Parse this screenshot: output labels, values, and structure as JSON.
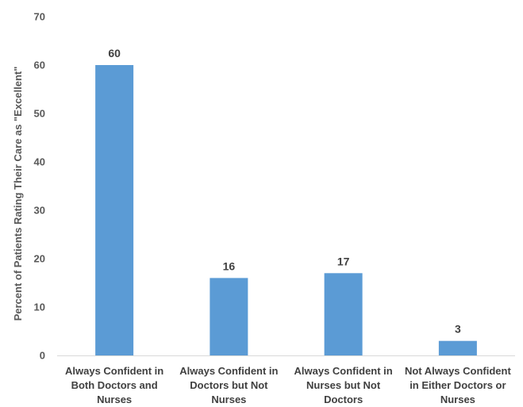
{
  "chart_data": {
    "type": "bar",
    "categories": [
      [
        "Always Confident in",
        "Both Doctors and",
        "Nurses"
      ],
      [
        "Always Confident in",
        "Doctors but Not",
        "Nurses"
      ],
      [
        "Always Confident in",
        "Nurses but Not",
        "Doctors"
      ],
      [
        "Not Always Confident",
        "in Either Doctors or",
        "Nurses"
      ]
    ],
    "values": [
      60,
      16,
      17,
      3
    ],
    "data_labels": [
      "60",
      "16",
      "17",
      "3"
    ],
    "title": "",
    "xlabel": "",
    "ylabel": "Percent of Patients Rating Their Care as \"Excellent\"",
    "ylim": [
      0,
      70
    ],
    "yticks": [
      0,
      10,
      20,
      30,
      40,
      50,
      60,
      70
    ],
    "grid": false,
    "legend": "none",
    "bar_color": "#5b9bd5",
    "axis_color": "#d9d9d9"
  }
}
